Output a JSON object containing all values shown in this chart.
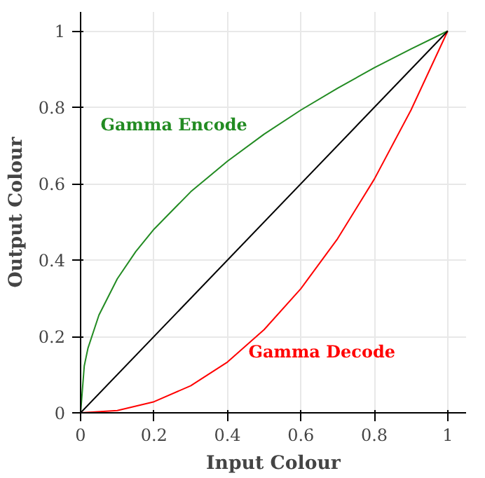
{
  "chart_data": {
    "type": "line",
    "xlabel": "Input Colour",
    "ylabel": "Output Colour",
    "xlim": [
      0,
      1.05
    ],
    "ylim": [
      0,
      1.05
    ],
    "xticks": [
      0,
      0.2,
      0.4,
      0.6,
      0.8,
      1
    ],
    "yticks": [
      0,
      0.2,
      0.4,
      0.6,
      0.8,
      1
    ],
    "grid": true,
    "series": [
      {
        "name": "Gamma Encode",
        "color": "#228b22",
        "x": [
          0,
          0.01,
          0.02,
          0.05,
          0.1,
          0.15,
          0.2,
          0.3,
          0.4,
          0.5,
          0.6,
          0.7,
          0.8,
          0.9,
          1
        ],
        "values": [
          0,
          0.123,
          0.169,
          0.256,
          0.351,
          0.422,
          0.481,
          0.579,
          0.659,
          0.73,
          0.793,
          0.85,
          0.904,
          0.953,
          1
        ]
      },
      {
        "name": "Gamma Decode",
        "color": "#ff0000",
        "x": [
          0,
          0.1,
          0.2,
          0.3,
          0.4,
          0.5,
          0.6,
          0.7,
          0.8,
          0.9,
          1
        ],
        "values": [
          0,
          0.006,
          0.029,
          0.071,
          0.133,
          0.218,
          0.325,
          0.456,
          0.612,
          0.793,
          1
        ]
      },
      {
        "color": "#000000",
        "x": [
          0,
          1
        ],
        "values": [
          0,
          1
        ]
      }
    ]
  }
}
